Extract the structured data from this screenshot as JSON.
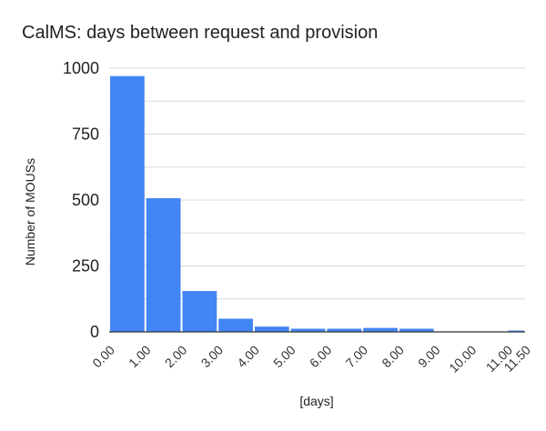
{
  "chart_data": {
    "type": "bar",
    "title": "CalMS: days between request and provision",
    "xlabel": "[days]",
    "ylabel": "Number of MOUSs",
    "bin_edges": [
      0,
      1,
      2,
      3,
      4,
      5,
      6,
      7,
      8,
      9,
      10,
      11,
      11.5
    ],
    "x_tick_labels": [
      "0.00",
      "1.00",
      "2.00",
      "3.00",
      "4.00",
      "5.00",
      "6.00",
      "7.00",
      "8.00",
      "9.00",
      "10.00",
      "11.00",
      "11.50"
    ],
    "values": [
      970,
      507,
      155,
      50,
      20,
      12,
      12,
      15,
      12,
      2,
      2,
      5
    ],
    "ylim": [
      0,
      1000
    ],
    "y_ticks": [
      0,
      250,
      500,
      750,
      1000
    ],
    "grid": true,
    "bar_color": "#4285f4",
    "grid_color": "#d9d9d9",
    "axis_color": "#333333"
  }
}
